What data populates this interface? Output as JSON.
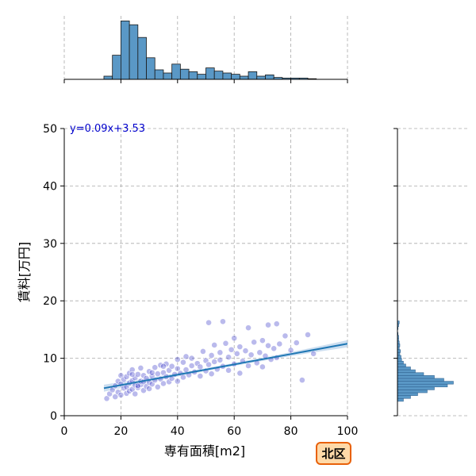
{
  "chart_data": {
    "type": "scatter",
    "xlabel": "専有面積[m2]",
    "ylabel": "賃料[万円]",
    "xlim": [
      0,
      100
    ],
    "ylim": [
      0,
      50
    ],
    "x_ticks": [
      0,
      20,
      40,
      60,
      80,
      100
    ],
    "y_ticks": [
      0,
      10,
      20,
      30,
      40,
      50
    ],
    "grid": true,
    "regression": {
      "slope": 0.09,
      "intercept": 3.53,
      "x_range": [
        14,
        100
      ],
      "label": "y=0.09x+3.53"
    },
    "points": [
      [
        15,
        3.0
      ],
      [
        16,
        3.8
      ],
      [
        17,
        4.5
      ],
      [
        18,
        3.3
      ],
      [
        18,
        5.2
      ],
      [
        19,
        6.0
      ],
      [
        19,
        4.1
      ],
      [
        20,
        3.6
      ],
      [
        20,
        5.5
      ],
      [
        20,
        7.0
      ],
      [
        21,
        4.8
      ],
      [
        21,
        6.3
      ],
      [
        22,
        3.9
      ],
      [
        22,
        5.0
      ],
      [
        22,
        6.8
      ],
      [
        23,
        4.3
      ],
      [
        23,
        5.7
      ],
      [
        23,
        7.4
      ],
      [
        24,
        4.6
      ],
      [
        24,
        6.1
      ],
      [
        24,
        8.0
      ],
      [
        25,
        3.8
      ],
      [
        25,
        5.3
      ],
      [
        25,
        6.6
      ],
      [
        26,
        4.9
      ],
      [
        26,
        7.2
      ],
      [
        27,
        5.4
      ],
      [
        27,
        6.0
      ],
      [
        27,
        8.3
      ],
      [
        28,
        4.4
      ],
      [
        28,
        5.9
      ],
      [
        28,
        7.0
      ],
      [
        29,
        5.1
      ],
      [
        29,
        6.5
      ],
      [
        30,
        4.7
      ],
      [
        30,
        5.8
      ],
      [
        30,
        7.7
      ],
      [
        31,
        5.5
      ],
      [
        31,
        6.9
      ],
      [
        32,
        6.2
      ],
      [
        32,
        8.4
      ],
      [
        33,
        5.0
      ],
      [
        33,
        7.3
      ],
      [
        34,
        6.4
      ],
      [
        34,
        8.8
      ],
      [
        35,
        5.6
      ],
      [
        35,
        7.5
      ],
      [
        36,
        6.8
      ],
      [
        36,
        9.0
      ],
      [
        37,
        5.9
      ],
      [
        37,
        7.9
      ],
      [
        38,
        6.5
      ],
      [
        38,
        8.6
      ],
      [
        39,
        7.2
      ],
      [
        40,
        6.0
      ],
      [
        40,
        8.2
      ],
      [
        40,
        9.8
      ],
      [
        41,
        7.4
      ],
      [
        42,
        6.7
      ],
      [
        42,
        9.3
      ],
      [
        43,
        10.3
      ],
      [
        43,
        8.0
      ],
      [
        44,
        7.1
      ],
      [
        45,
        8.7
      ],
      [
        45,
        10.0
      ],
      [
        46,
        7.6
      ],
      [
        47,
        9.1
      ],
      [
        48,
        6.9
      ],
      [
        48,
        8.5
      ],
      [
        49,
        11.2
      ],
      [
        50,
        7.8
      ],
      [
        50,
        9.6
      ],
      [
        51,
        16.2
      ],
      [
        51,
        8.9
      ],
      [
        52,
        10.5
      ],
      [
        52,
        7.3
      ],
      [
        53,
        12.3
      ],
      [
        53,
        9.4
      ],
      [
        54,
        8.1
      ],
      [
        55,
        11.0
      ],
      [
        55,
        9.7
      ],
      [
        56,
        16.4
      ],
      [
        56,
        8.6
      ],
      [
        57,
        12.6
      ],
      [
        58,
        10.2
      ],
      [
        58,
        7.9
      ],
      [
        59,
        11.5
      ],
      [
        60,
        9.0
      ],
      [
        60,
        13.5
      ],
      [
        61,
        10.8
      ],
      [
        62,
        7.4
      ],
      [
        62,
        12.0
      ],
      [
        63,
        9.5
      ],
      [
        64,
        11.3
      ],
      [
        65,
        15.3
      ],
      [
        65,
        8.7
      ],
      [
        66,
        10.6
      ],
      [
        67,
        12.8
      ],
      [
        68,
        9.2
      ],
      [
        69,
        11.0
      ],
      [
        70,
        13.1
      ],
      [
        70,
        8.5
      ],
      [
        71,
        10.4
      ],
      [
        72,
        15.8
      ],
      [
        72,
        12.2
      ],
      [
        73,
        9.8
      ],
      [
        74,
        11.7
      ],
      [
        75,
        16.0
      ],
      [
        75,
        10.1
      ],
      [
        76,
        12.5
      ],
      [
        78,
        13.9
      ],
      [
        80,
        11.4
      ],
      [
        82,
        12.7
      ],
      [
        84,
        6.2
      ],
      [
        86,
        14.1
      ],
      [
        88,
        10.8
      ],
      [
        31,
        7.5
      ],
      [
        26,
        5.2
      ],
      [
        24,
        7.2
      ],
      [
        35,
        8.6
      ]
    ],
    "top_histogram": {
      "bin_width": 3,
      "bins": [
        [
          14,
          0.05
        ],
        [
          17,
          0.38
        ],
        [
          20,
          0.92
        ],
        [
          23,
          0.86
        ],
        [
          26,
          0.66
        ],
        [
          29,
          0.34
        ],
        [
          32,
          0.15
        ],
        [
          35,
          0.1
        ],
        [
          38,
          0.24
        ],
        [
          41,
          0.16
        ],
        [
          44,
          0.12
        ],
        [
          47,
          0.08
        ],
        [
          50,
          0.18
        ],
        [
          53,
          0.13
        ],
        [
          56,
          0.1
        ],
        [
          59,
          0.08
        ],
        [
          62,
          0.05
        ],
        [
          65,
          0.12
        ],
        [
          68,
          0.05
        ],
        [
          71,
          0.07
        ],
        [
          74,
          0.03
        ],
        [
          77,
          0.02
        ],
        [
          80,
          0.02
        ],
        [
          83,
          0.02
        ],
        [
          86,
          0.01
        ]
      ]
    },
    "right_histogram": {
      "bin_width": 0.5,
      "bins": [
        [
          2.5,
          0.1
        ],
        [
          3.0,
          0.22
        ],
        [
          3.5,
          0.34
        ],
        [
          4.0,
          0.5
        ],
        [
          4.5,
          0.62
        ],
        [
          5.0,
          0.84
        ],
        [
          5.5,
          0.94
        ],
        [
          6.0,
          0.78
        ],
        [
          6.5,
          0.62
        ],
        [
          7.0,
          0.44
        ],
        [
          7.5,
          0.3
        ],
        [
          8.0,
          0.22
        ],
        [
          8.5,
          0.14
        ],
        [
          9.0,
          0.1
        ],
        [
          9.5,
          0.07
        ],
        [
          10.0,
          0.06
        ],
        [
          10.5,
          0.04
        ],
        [
          11.0,
          0.05
        ],
        [
          11.5,
          0.03
        ],
        [
          12.0,
          0.04
        ],
        [
          12.5,
          0.03
        ],
        [
          13.0,
          0.02
        ],
        [
          13.5,
          0.02
        ],
        [
          14.0,
          0.01
        ],
        [
          15.0,
          0.01
        ],
        [
          15.5,
          0.02
        ],
        [
          16.0,
          0.03
        ]
      ]
    }
  },
  "badge": {
    "label": "北区"
  },
  "colors": {
    "point": "#3a3ac8",
    "line": "#1f77b4",
    "band": "#aac8e6",
    "hist_fill": "#5a98c6",
    "hist_stroke": "#1a1a1a",
    "grid": "#aaaaaa",
    "badge_fill": "#ffd9a8",
    "badge_stroke": "#e8610a"
  }
}
